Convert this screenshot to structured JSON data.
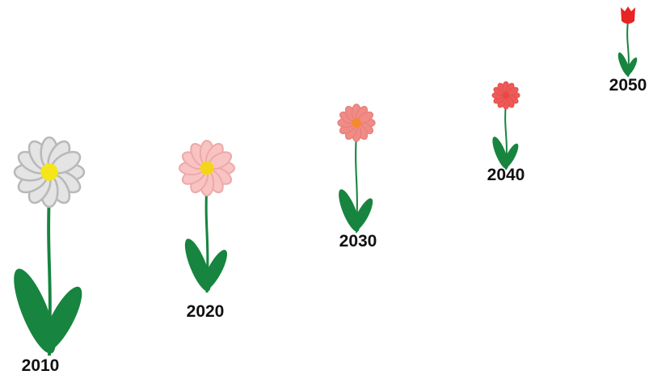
{
  "flowers": [
    {
      "label": "2010"
    },
    {
      "label": "2020"
    },
    {
      "label": "2030"
    },
    {
      "label": "2040"
    },
    {
      "label": "2050"
    }
  ]
}
